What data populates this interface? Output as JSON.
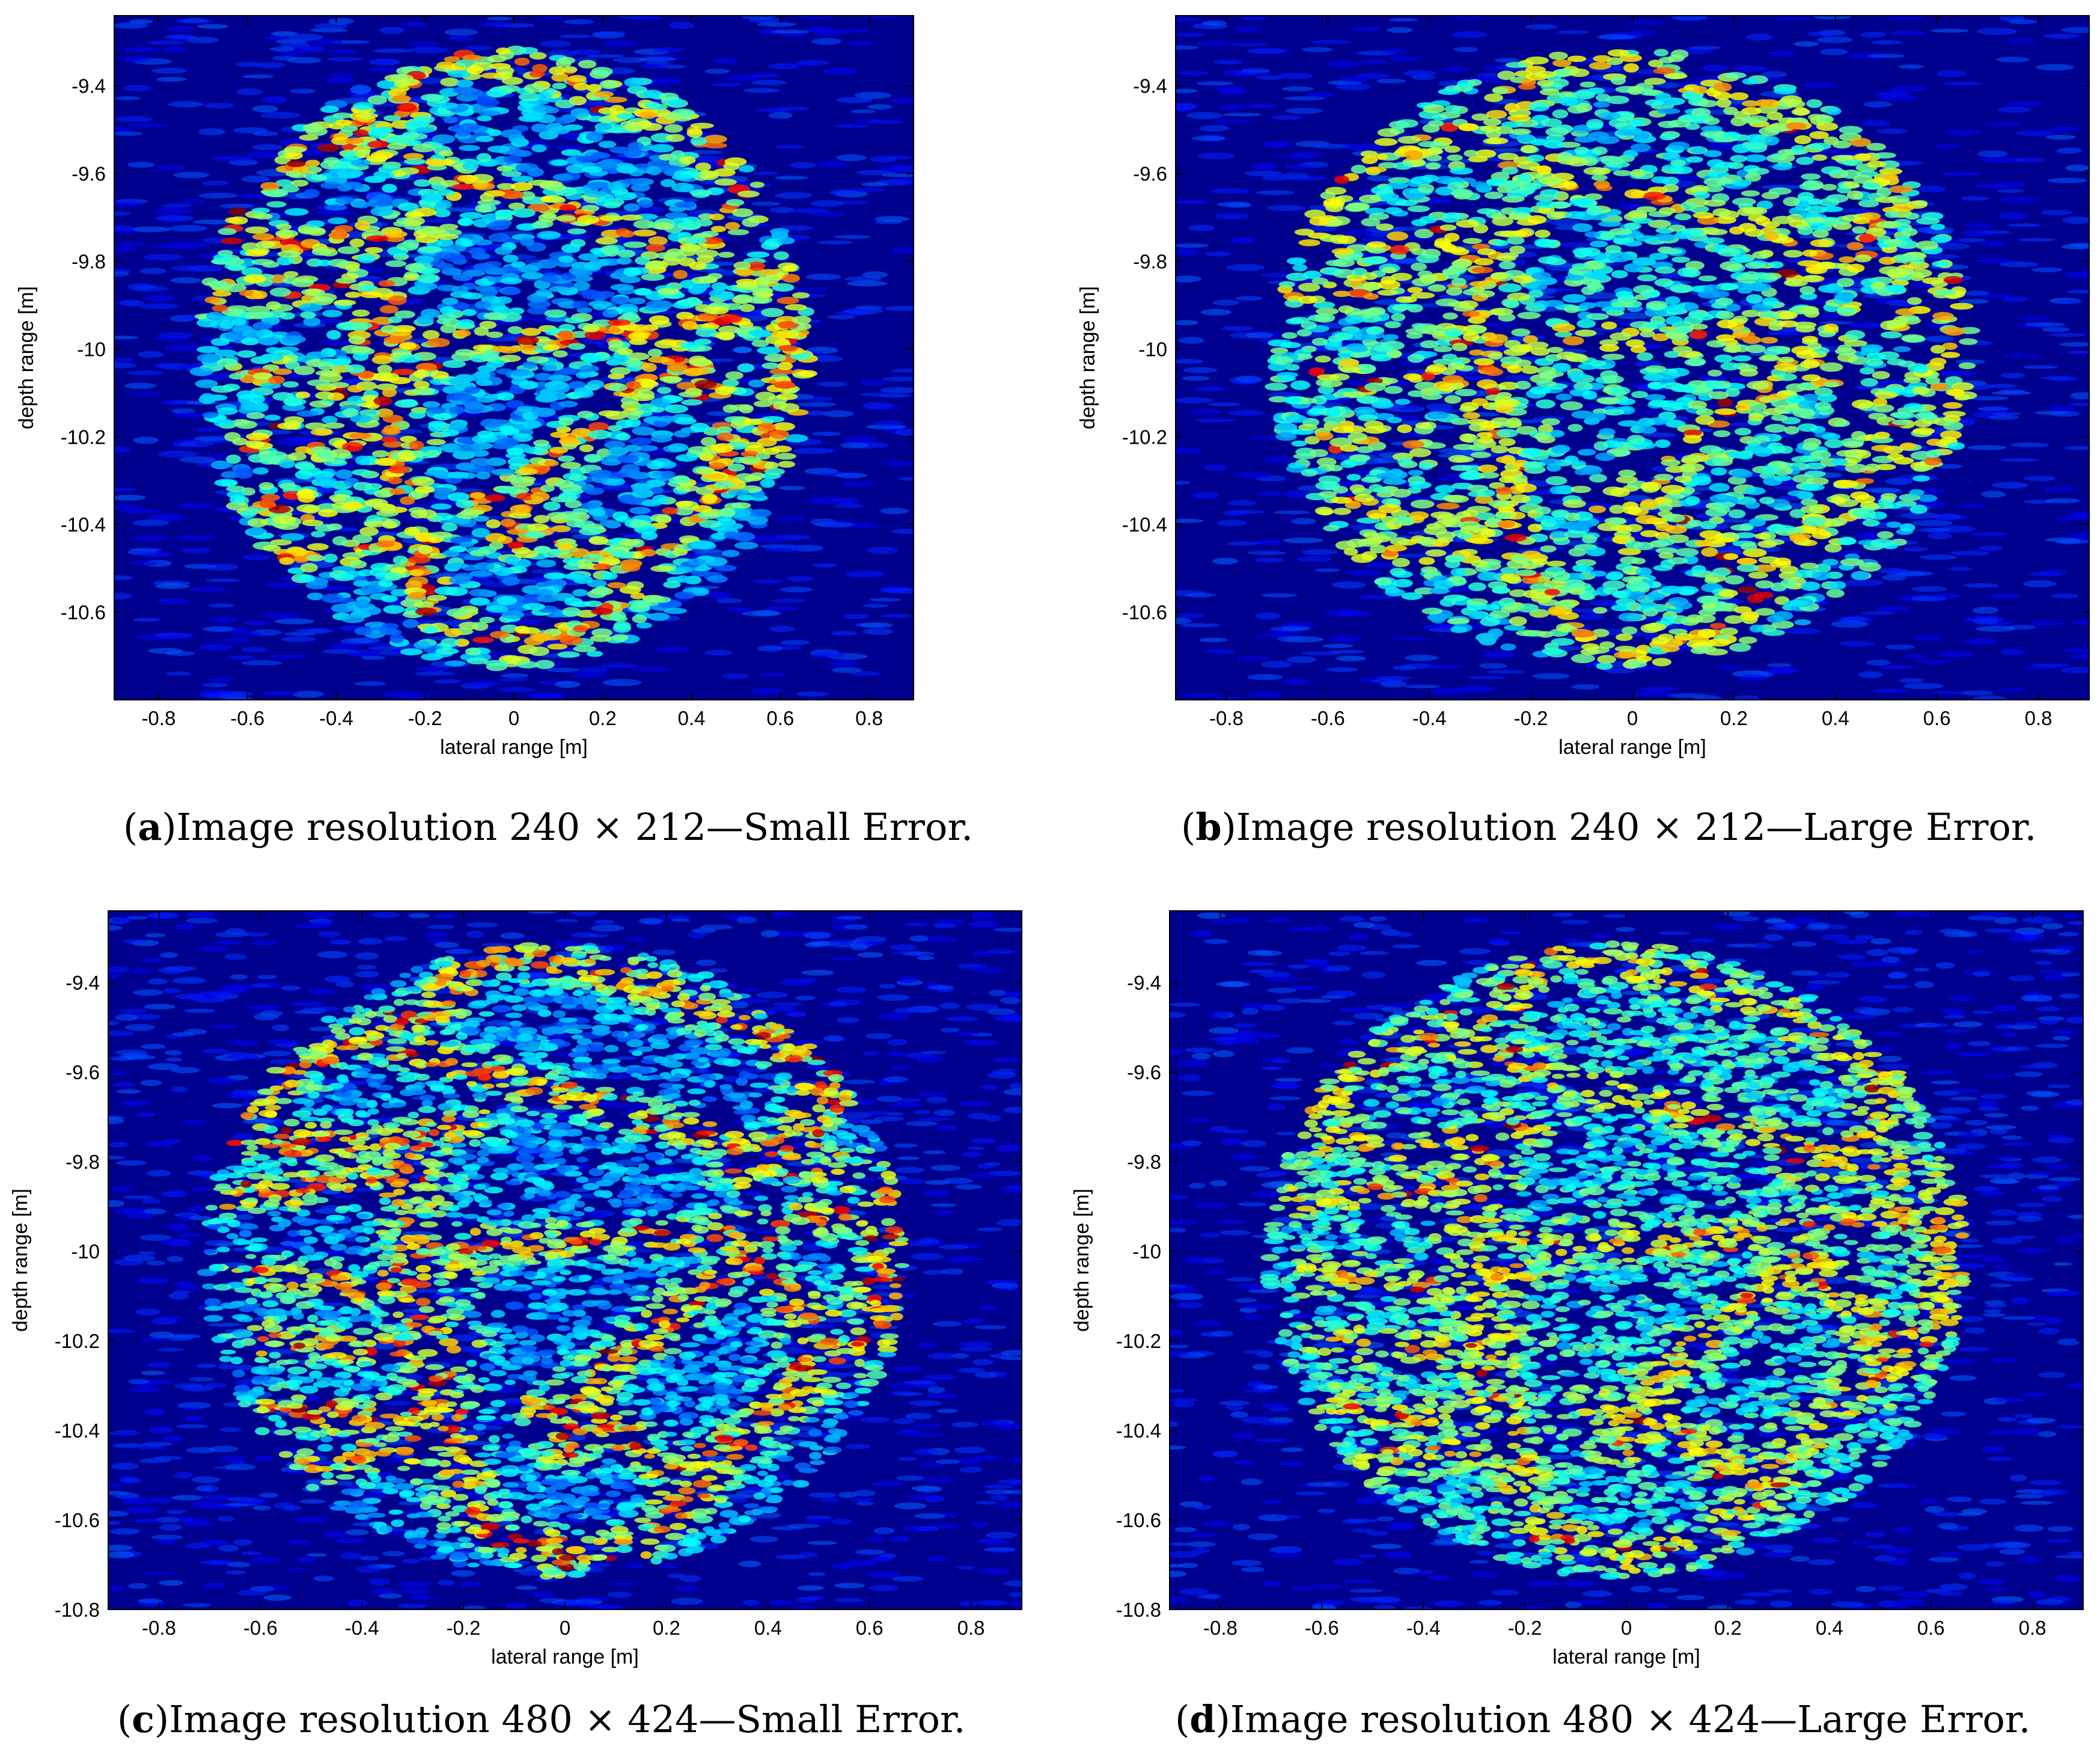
{
  "figure": {
    "colors": {
      "background": "#00008F",
      "colormap": "jet",
      "axis": "#000000"
    },
    "panels": [
      {
        "letter": "a",
        "caption": "Image resolution 240 × 212—Small Error.",
        "pattern": "small_error",
        "resolution": "240x212"
      },
      {
        "letter": "b",
        "caption": "Image resolution 240 × 212—Large Error.",
        "pattern": "large_error",
        "resolution": "240x212"
      },
      {
        "letter": "c",
        "caption": "Image resolution 480 × 424—Small Error.",
        "pattern": "small_error",
        "resolution": "480x424"
      },
      {
        "letter": "d",
        "caption": "Image resolution 480 × 424—Large Error.",
        "pattern": "large_error",
        "resolution": "480x424"
      }
    ]
  },
  "chart_data": [
    {
      "type": "heatmap",
      "xlabel": "lateral range [m]",
      "ylabel": "depth range [m]",
      "xlim": [
        -0.9,
        0.9
      ],
      "ylim": [
        -10.8,
        -9.24
      ],
      "xticks": [
        "-0.8",
        "-0.6",
        "-0.4",
        "-0.2",
        "0",
        "0.2",
        "0.4",
        "0.6",
        "0.8"
      ],
      "yticks": [
        "-9.4",
        "-9.6",
        "-9.8",
        "-10",
        "-10.2",
        "-10.4",
        "-10.6"
      ],
      "grid": false,
      "colormap": "jet"
    },
    {
      "type": "heatmap",
      "xlabel": "lateral range [m]",
      "ylabel": "depth range [m]",
      "xlim": [
        -0.9,
        0.9
      ],
      "ylim": [
        -10.8,
        -9.24
      ],
      "xticks": [
        "-0.8",
        "-0.6",
        "-0.4",
        "-0.2",
        "0",
        "0.2",
        "0.4",
        "0.6",
        "0.8"
      ],
      "yticks": [
        "-9.4",
        "-9.6",
        "-9.8",
        "-10",
        "-10.2",
        "-10.4",
        "-10.6"
      ],
      "grid": false,
      "colormap": "jet"
    },
    {
      "type": "heatmap",
      "xlabel": "lateral range [m]",
      "ylabel": "depth range [m]",
      "xlim": [
        -0.9,
        0.9
      ],
      "ylim": [
        -10.8,
        -9.24
      ],
      "xticks": [
        "-0.8",
        "-0.6",
        "-0.4",
        "-0.2",
        "0",
        "0.2",
        "0.4",
        "0.6",
        "0.8"
      ],
      "yticks": [
        "-9.4",
        "-9.6",
        "-9.8",
        "-10",
        "-10.2",
        "-10.4",
        "-10.6",
        "-10.8"
      ],
      "grid": false,
      "colormap": "jet"
    },
    {
      "type": "heatmap",
      "xlabel": "lateral range [m]",
      "ylabel": "depth range [m]",
      "xlim": [
        -0.9,
        0.9
      ],
      "ylim": [
        -10.8,
        -9.24
      ],
      "xticks": [
        "-0.8",
        "-0.6",
        "-0.4",
        "-0.2",
        "0",
        "0.2",
        "0.4",
        "0.6",
        "0.8"
      ],
      "yticks": [
        "-9.4",
        "-9.6",
        "-9.8",
        "-10",
        "-10.2",
        "-10.4",
        "-10.6",
        "-10.8"
      ],
      "grid": false,
      "colormap": "jet"
    }
  ]
}
